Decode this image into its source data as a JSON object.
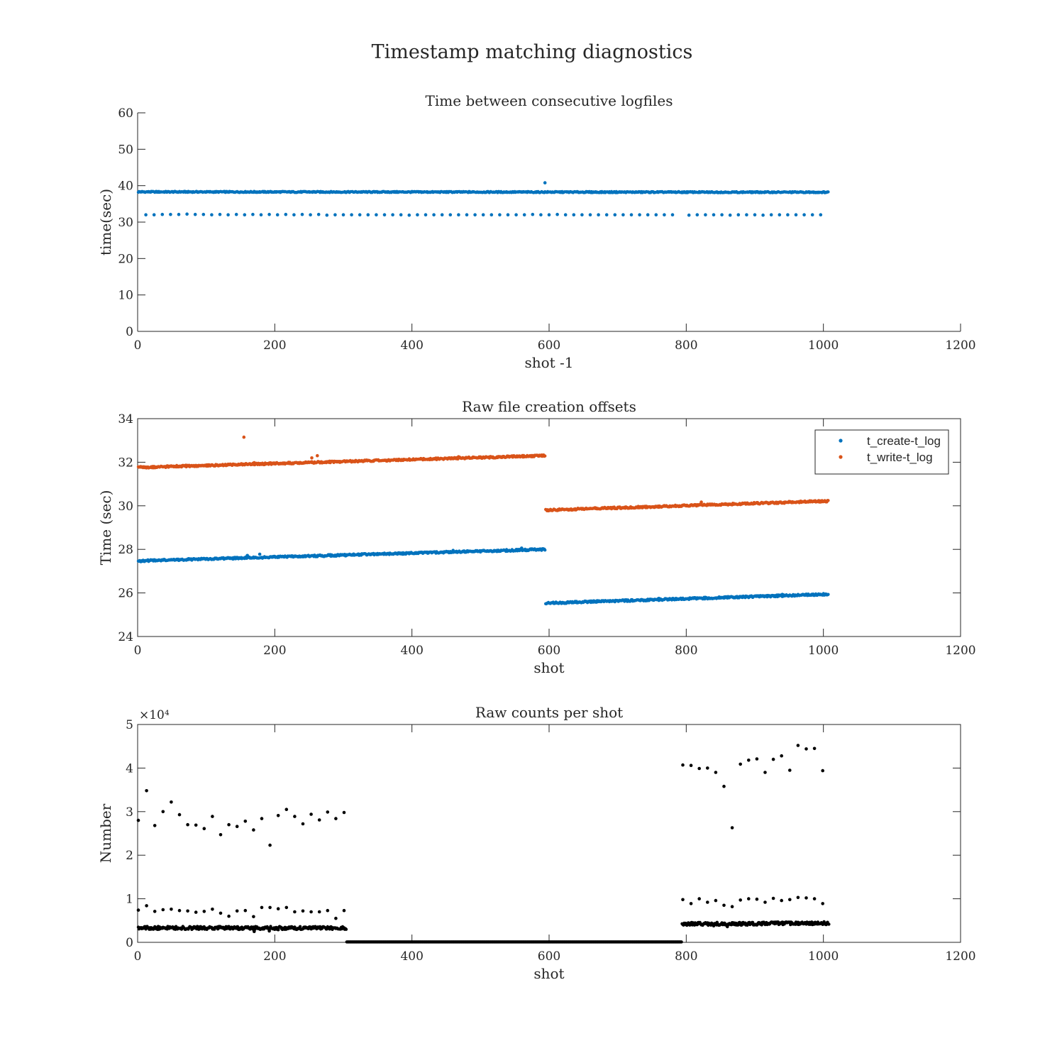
{
  "figure": {
    "title": "Timestamp matching diagnostics"
  },
  "chart_data": [
    {
      "type": "scatter",
      "title": "Time between consecutive logfiles",
      "xlabel": "shot -1",
      "ylabel": "time(sec)",
      "xlim": [
        0,
        1200
      ],
      "ylim": [
        0,
        60
      ],
      "xticks": [
        0,
        200,
        400,
        600,
        800,
        1000,
        1200
      ],
      "yticks": [
        0,
        10,
        20,
        30,
        40,
        50,
        60
      ],
      "grid": false,
      "series": [
        {
          "color": "#0072BD",
          "dense_segments": [
            {
              "x_start": 1,
              "x_end": 1007,
              "step": 1,
              "y_start": 38.3,
              "y_end": 38.2,
              "jitter": 0.15,
              "skip_every": 12
            }
          ],
          "points": [
            [
              12,
              32.0
            ],
            [
              24,
              32.0
            ],
            [
              36,
              32.1
            ],
            [
              48,
              32.1
            ],
            [
              60,
              32.1
            ],
            [
              72,
              32.2
            ],
            [
              84,
              32.1
            ],
            [
              96,
              32.1
            ],
            [
              108,
              32.0
            ],
            [
              120,
              32.1
            ],
            [
              132,
              32.0
            ],
            [
              144,
              32.1
            ],
            [
              156,
              32.0
            ],
            [
              168,
              32.1
            ],
            [
              180,
              32.0
            ],
            [
              192,
              32.1
            ],
            [
              204,
              32.0
            ],
            [
              216,
              32.1
            ],
            [
              228,
              32.0
            ],
            [
              240,
              32.1
            ],
            [
              252,
              32.0
            ],
            [
              264,
              32.1
            ],
            [
              276,
              31.9
            ],
            [
              288,
              32.0
            ],
            [
              300,
              32.0
            ],
            [
              312,
              32.0
            ],
            [
              324,
              32.0
            ],
            [
              336,
              32.0
            ],
            [
              348,
              32.0
            ],
            [
              360,
              32.0
            ],
            [
              372,
              32.0
            ],
            [
              384,
              32.0
            ],
            [
              396,
              31.9
            ],
            [
              408,
              32.0
            ],
            [
              420,
              32.0
            ],
            [
              432,
              32.0
            ],
            [
              444,
              32.0
            ],
            [
              456,
              32.0
            ],
            [
              468,
              32.0
            ],
            [
              480,
              32.0
            ],
            [
              492,
              32.0
            ],
            [
              504,
              32.0
            ],
            [
              516,
              32.0
            ],
            [
              528,
              32.0
            ],
            [
              540,
              32.0
            ],
            [
              552,
              32.0
            ],
            [
              564,
              32.0
            ],
            [
              576,
              32.1
            ],
            [
              588,
              32.0
            ],
            [
              600,
              32.0
            ],
            [
              612,
              32.1
            ],
            [
              624,
              32.0
            ],
            [
              636,
              32.0
            ],
            [
              648,
              32.0
            ],
            [
              660,
              32.0
            ],
            [
              672,
              32.0
            ],
            [
              684,
              32.0
            ],
            [
              696,
              32.0
            ],
            [
              708,
              32.0
            ],
            [
              720,
              32.0
            ],
            [
              732,
              32.0
            ],
            [
              744,
              32.0
            ],
            [
              756,
              32.0
            ],
            [
              768,
              32.0
            ],
            [
              780,
              32.0
            ],
            [
              804,
              31.9
            ],
            [
              816,
              32.0
            ],
            [
              828,
              32.0
            ],
            [
              840,
              32.0
            ],
            [
              852,
              32.0
            ],
            [
              864,
              31.9
            ],
            [
              876,
              32.0
            ],
            [
              888,
              32.0
            ],
            [
              900,
              32.0
            ],
            [
              912,
              31.9
            ],
            [
              924,
              32.0
            ],
            [
              936,
              32.0
            ],
            [
              948,
              32.0
            ],
            [
              960,
              32.0
            ],
            [
              972,
              32.0
            ],
            [
              984,
              32.0
            ],
            [
              996,
              32.0
            ],
            [
              594,
              40.8
            ]
          ]
        }
      ]
    },
    {
      "type": "scatter",
      "title": "Raw file creation offsets",
      "xlabel": "shot",
      "ylabel": "Time (sec)",
      "xlim": [
        0,
        1200
      ],
      "ylim": [
        24,
        34
      ],
      "xticks": [
        0,
        200,
        400,
        600,
        800,
        1000,
        1200
      ],
      "yticks": [
        24,
        26,
        28,
        30,
        32,
        34
      ],
      "grid": false,
      "legend": {
        "location": "top-right"
      },
      "series": [
        {
          "name": "t_create-t_log",
          "color": "#0072BD",
          "dense_segments": [
            {
              "x_start": 1,
              "x_end": 594,
              "step": 1,
              "y_start": 27.47,
              "y_end": 28.0,
              "jitter": 0.04,
              "skip_every": 0
            },
            {
              "x_start": 595,
              "x_end": 1007,
              "step": 1,
              "y_start": 25.53,
              "y_end": 25.94,
              "jitter": 0.04,
              "skip_every": 0
            }
          ],
          "points": [
            [
              160,
              27.72
            ],
            [
              178,
              27.78
            ],
            [
              460,
              27.95
            ],
            [
              560,
              28.06
            ],
            [
              760,
              25.75
            ],
            [
              940,
              25.93
            ]
          ]
        },
        {
          "name": "t_write-t_log",
          "color": "#D95319",
          "dense_segments": [
            {
              "x_start": 1,
              "x_end": 594,
              "step": 1,
              "y_start": 31.76,
              "y_end": 32.3,
              "jitter": 0.04,
              "skip_every": 0
            },
            {
              "x_start": 595,
              "x_end": 1007,
              "step": 1,
              "y_start": 29.8,
              "y_end": 30.22,
              "jitter": 0.04,
              "skip_every": 0
            }
          ],
          "points": [
            [
              155,
              33.15
            ],
            [
              254,
              32.2
            ],
            [
              262,
              32.3
            ],
            [
              170,
              31.98
            ],
            [
              468,
              32.25
            ],
            [
              822,
              30.17
            ]
          ]
        }
      ]
    },
    {
      "type": "scatter",
      "title": "Raw counts per shot",
      "xlabel": "shot",
      "ylabel": "Number",
      "xlim": [
        0,
        1200
      ],
      "ylim": [
        0,
        5
      ],
      "y_multiplier": "×10⁴",
      "xticks": [
        0,
        200,
        400,
        600,
        800,
        1000,
        1200
      ],
      "yticks": [
        0,
        1,
        2,
        3,
        4,
        5
      ],
      "grid": false,
      "series": [
        {
          "color": "#000000",
          "dense_segments": [
            {
              "x_start": 1,
              "x_end": 304,
              "step": 1,
              "y_start": 0.33,
              "y_end": 0.33,
              "jitter": 0.035,
              "skip_every": 0
            },
            {
              "x_start": 305,
              "x_end": 793,
              "step": 1,
              "y_start": 0.01,
              "y_end": 0.01,
              "jitter": 0.0,
              "skip_every": 0
            },
            {
              "x_start": 794,
              "x_end": 1008,
              "step": 1,
              "y_start": 0.42,
              "y_end": 0.44,
              "jitter": 0.035,
              "skip_every": 0
            }
          ],
          "points": [
            [
              1,
              2.8
            ],
            [
              13,
              3.48
            ],
            [
              25,
              2.68
            ],
            [
              37,
              3.0
            ],
            [
              49,
              3.22
            ],
            [
              61,
              2.93
            ],
            [
              73,
              2.7
            ],
            [
              85,
              2.69
            ],
            [
              97,
              2.61
            ],
            [
              109,
              2.89
            ],
            [
              121,
              2.47
            ],
            [
              133,
              2.7
            ],
            [
              145,
              2.66
            ],
            [
              157,
              2.78
            ],
            [
              169,
              2.58
            ],
            [
              181,
              2.84
            ],
            [
              193,
              2.23
            ],
            [
              205,
              2.91
            ],
            [
              217,
              3.05
            ],
            [
              229,
              2.89
            ],
            [
              241,
              2.72
            ],
            [
              253,
              2.94
            ],
            [
              265,
              2.81
            ],
            [
              277,
              2.99
            ],
            [
              289,
              2.84
            ],
            [
              301,
              2.98
            ],
            [
              1,
              0.74
            ],
            [
              13,
              0.84
            ],
            [
              25,
              0.71
            ],
            [
              37,
              0.75
            ],
            [
              49,
              0.76
            ],
            [
              61,
              0.73
            ],
            [
              73,
              0.72
            ],
            [
              85,
              0.69
            ],
            [
              97,
              0.71
            ],
            [
              109,
              0.76
            ],
            [
              121,
              0.67
            ],
            [
              133,
              0.6
            ],
            [
              145,
              0.72
            ],
            [
              157,
              0.73
            ],
            [
              169,
              0.59
            ],
            [
              181,
              0.8
            ],
            [
              193,
              0.8
            ],
            [
              205,
              0.77
            ],
            [
              217,
              0.8
            ],
            [
              229,
              0.7
            ],
            [
              241,
              0.72
            ],
            [
              253,
              0.7
            ],
            [
              265,
              0.7
            ],
            [
              277,
              0.73
            ],
            [
              289,
              0.55
            ],
            [
              301,
              0.73
            ],
            [
              795,
              4.07
            ],
            [
              807,
              4.06
            ],
            [
              819,
              3.99
            ],
            [
              831,
              4.0
            ],
            [
              843,
              3.9
            ],
            [
              855,
              3.58
            ],
            [
              867,
              2.63
            ],
            [
              879,
              4.09
            ],
            [
              891,
              4.18
            ],
            [
              903,
              4.21
            ],
            [
              915,
              3.9
            ],
            [
              927,
              4.2
            ],
            [
              939,
              4.28
            ],
            [
              951,
              3.95
            ],
            [
              963,
              4.52
            ],
            [
              975,
              4.44
            ],
            [
              987,
              4.45
            ],
            [
              999,
              3.94
            ],
            [
              795,
              0.98
            ],
            [
              807,
              0.89
            ],
            [
              819,
              1.0
            ],
            [
              831,
              0.92
            ],
            [
              843,
              0.96
            ],
            [
              855,
              0.85
            ],
            [
              867,
              0.82
            ],
            [
              879,
              0.97
            ],
            [
              891,
              1.0
            ],
            [
              903,
              0.99
            ],
            [
              915,
              0.92
            ],
            [
              927,
              1.01
            ],
            [
              939,
              0.96
            ],
            [
              951,
              0.98
            ],
            [
              963,
              1.03
            ],
            [
              975,
              1.02
            ],
            [
              987,
              1.0
            ],
            [
              999,
              0.89
            ],
            [
              170,
              0.25
            ],
            [
              192,
              0.26
            ],
            [
              205,
              0.29
            ],
            [
              840,
              0.38
            ],
            [
              860,
              0.36
            ]
          ]
        }
      ]
    }
  ]
}
